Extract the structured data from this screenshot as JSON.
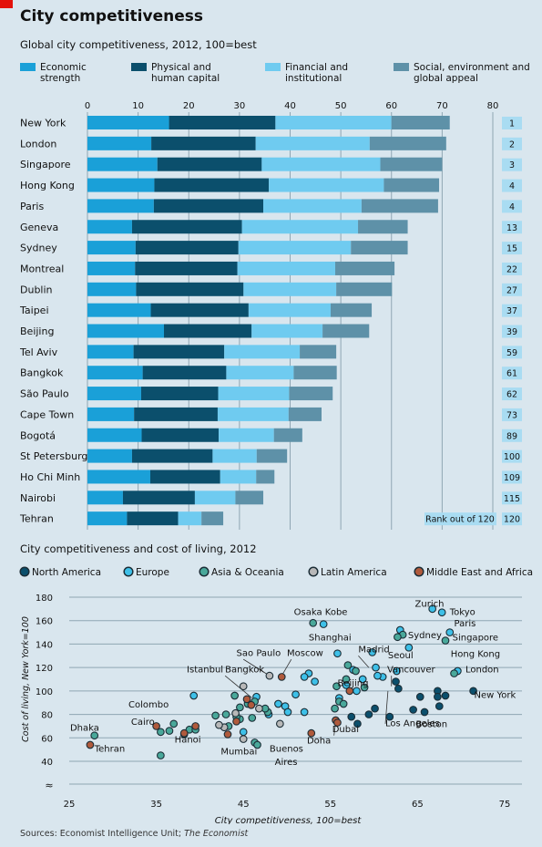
{
  "header": {
    "title": "City competitiveness",
    "source_prefix": "Sources: Economist Intelligence Unit; ",
    "source_italic": "The Economist"
  },
  "colors": {
    "economic": "#1aa0d8",
    "physical": "#0b4f6c",
    "financial": "#6fcbf0",
    "social": "#5e91a8",
    "north_america": "#0b4f6c",
    "europe": "#3ec0e8",
    "asia_oceania": "#49a89a",
    "latin_america": "#b8b8b8",
    "middle_east_africa": "#b05a3c"
  },
  "chart_data": [
    {
      "type": "bar",
      "stacked": true,
      "orientation": "horizontal",
      "title": "Global city competitiveness, 2012, 100=best",
      "categories": [
        "New York",
        "London",
        "Singapore",
        "Hong Kong",
        "Paris",
        "Geneva",
        "Sydney",
        "Montreal",
        "Dublin",
        "Taipei",
        "Beijing",
        "Tel Aviv",
        "Bangkok",
        "São Paulo",
        "Cape Town",
        "Bogotá",
        "St Petersburg",
        "Ho Chi Minh",
        "Nairobi",
        "Tehran"
      ],
      "series": [
        {
          "name": "Economic strength",
          "values": [
            16.1,
            12.6,
            13.8,
            13.2,
            13.1,
            8.8,
            9.5,
            9.4,
            9.6,
            12.5,
            15.1,
            9.1,
            10.9,
            10.6,
            9.2,
            10.7,
            8.8,
            12.4,
            7.0,
            7.8
          ]
        },
        {
          "name": "Physical and human capital",
          "values": [
            21.0,
            20.6,
            20.6,
            22.6,
            21.6,
            21.7,
            20.3,
            20.2,
            21.2,
            19.3,
            17.3,
            17.9,
            16.5,
            15.2,
            16.5,
            15.2,
            15.9,
            13.8,
            14.2,
            10.1
          ]
        },
        {
          "name": "Financial and institutional",
          "values": [
            22.9,
            22.5,
            23.4,
            22.7,
            19.4,
            22.9,
            22.2,
            19.3,
            18.3,
            16.2,
            14.0,
            14.9,
            13.3,
            14.0,
            14.0,
            10.9,
            8.7,
            7.1,
            8.0,
            4.6
          ]
        },
        {
          "name": "Social, environment and global appeal",
          "values": [
            11.5,
            15.1,
            12.2,
            10.9,
            15.1,
            9.8,
            11.2,
            11.7,
            11.0,
            8.1,
            9.2,
            7.2,
            8.5,
            8.6,
            6.5,
            5.6,
            6.0,
            3.6,
            5.5,
            4.3
          ]
        }
      ],
      "ranks": [
        "1",
        "2",
        "3",
        "4",
        "4",
        "13",
        "15",
        "22",
        "27",
        "37",
        "39",
        "59",
        "61",
        "62",
        "73",
        "89",
        "100",
        "109",
        "115",
        "120"
      ],
      "rank_note": "Rank out of 120",
      "xlim": [
        0,
        80
      ],
      "xticks": [
        0,
        10,
        20,
        30,
        40,
        50,
        60,
        70,
        80
      ],
      "legend": "top"
    },
    {
      "type": "scatter",
      "title": "City competitiveness and cost of living, 2012",
      "xlabel": "City competitiveness, 100=best",
      "ylabel": "Cost of living, New York=100",
      "xlim": [
        25,
        75
      ],
      "ylim": [
        40,
        180
      ],
      "xticks": [
        25,
        35,
        45,
        55,
        65,
        75
      ],
      "yticks": [
        40,
        60,
        80,
        100,
        120,
        140,
        160,
        180
      ],
      "legend": "top",
      "groups": [
        {
          "key": "north_america",
          "name": "North America",
          "points": [
            [
              71.4,
              100
            ],
            [
              62.5,
              108
            ],
            [
              62.8,
              102
            ],
            [
              60.1,
              85
            ],
            [
              61.8,
              78
            ],
            [
              67.3,
              100
            ],
            [
              67.3,
              95
            ],
            [
              65.3,
              95
            ],
            [
              68.2,
              96
            ],
            [
              64.5,
              84
            ],
            [
              65.8,
              82
            ],
            [
              67.5,
              87
            ],
            [
              59.4,
              80
            ],
            [
              58.1,
              72
            ],
            [
              57.4,
              78
            ]
          ]
        },
        {
          "key": "europe",
          "name": "Europe",
          "points": [
            [
              69.6,
              117
            ],
            [
              68.7,
              150
            ],
            [
              67.8,
              167
            ],
            [
              66.7,
              170
            ],
            [
              63.0,
              152
            ],
            [
              64.0,
              137
            ],
            [
              62.6,
              117
            ],
            [
              61.0,
              112
            ],
            [
              59.8,
              133
            ],
            [
              60.2,
              120
            ],
            [
              60.4,
              113
            ],
            [
              58.7,
              110
            ],
            [
              57.6,
              118
            ],
            [
              55.8,
              132
            ],
            [
              52.5,
              115
            ],
            [
              52.0,
              112
            ],
            [
              53.2,
              108
            ],
            [
              51.0,
              97
            ],
            [
              49.0,
              89
            ],
            [
              39.3,
              96
            ],
            [
              49.8,
              87
            ],
            [
              52.0,
              82
            ],
            [
              47.9,
              80
            ],
            [
              56.8,
              105
            ],
            [
              54.2,
              157
            ],
            [
              45.0,
              65
            ],
            [
              46.5,
              95
            ],
            [
              50.1,
              82
            ],
            [
              58.0,
              100
            ],
            [
              56.0,
              94
            ]
          ]
        },
        {
          "key": "asia_oceania",
          "name": "Asia & Oceania",
          "points": [
            [
              68.2,
              143
            ],
            [
              63.3,
              148
            ],
            [
              62.7,
              146
            ],
            [
              69.2,
              115
            ],
            [
              53.0,
              158
            ],
            [
              57.9,
              117
            ],
            [
              55.7,
              104
            ],
            [
              58.9,
              103
            ],
            [
              56.0,
              91
            ],
            [
              56.5,
              89
            ],
            [
              55.5,
              85
            ],
            [
              44.6,
              76
            ],
            [
              44.6,
              86
            ],
            [
              45.5,
              89
            ],
            [
              27.9,
              62
            ],
            [
              35.5,
              65
            ],
            [
              37.0,
              72
            ],
            [
              36.5,
              66
            ],
            [
              38.2,
              63
            ],
            [
              38.8,
              67
            ],
            [
              39.5,
              67
            ],
            [
              41.8,
              79
            ],
            [
              43.0,
              80
            ],
            [
              43.3,
              70
            ],
            [
              44.2,
              78
            ],
            [
              46.0,
              77
            ],
            [
              47.8,
              82
            ],
            [
              44.0,
              96
            ],
            [
              35.5,
              45
            ],
            [
              46.3,
              91
            ],
            [
              46.3,
              56
            ],
            [
              47.5,
              85
            ],
            [
              46.6,
              54
            ],
            [
              57.0,
              122
            ],
            [
              56.8,
              110
            ]
          ]
        },
        {
          "key": "latin_america",
          "name": "Latin America",
          "points": [
            [
              48.0,
              113
            ],
            [
              45.0,
              104
            ],
            [
              44.1,
              81
            ],
            [
              49.2,
              72
            ],
            [
              42.8,
              69
            ],
            [
              46.8,
              85
            ],
            [
              45.0,
              59
            ],
            [
              42.2,
              71
            ]
          ]
        },
        {
          "key": "middle_east_africa",
          "name": "Middle East and Africa",
          "points": [
            [
              27.4,
              54
            ],
            [
              35.0,
              70
            ],
            [
              38.2,
              64
            ],
            [
              44.2,
              74
            ],
            [
              45.9,
              88
            ],
            [
              45.4,
              93
            ],
            [
              49.4,
              112
            ],
            [
              52.8,
              64
            ],
            [
              55.6,
              75
            ],
            [
              55.8,
              73
            ],
            [
              57.2,
              100
            ],
            [
              43.2,
              63
            ],
            [
              39.5,
              70
            ]
          ]
        }
      ],
      "labels": [
        {
          "text": "Zurich",
          "x": 64.7,
          "y": 172
        },
        {
          "text": "Tokyo",
          "x": 68.7,
          "y": 165
        },
        {
          "text": "Osaka Kobe",
          "x": 50.8,
          "y": 165
        },
        {
          "text": "Paris",
          "x": 69.2,
          "y": 155
        },
        {
          "text": "Sydney",
          "x": 63.9,
          "y": 145
        },
        {
          "text": "Singapore",
          "x": 69.0,
          "y": 143
        },
        {
          "text": "Shanghai",
          "x": 52.5,
          "y": 143
        },
        {
          "text": "Madrid",
          "x": 58.2,
          "y": 133
        },
        {
          "text": "Seoul",
          "x": 61.6,
          "y": 128
        },
        {
          "text": "Hong Kong",
          "x": 68.8,
          "y": 129
        },
        {
          "text": "Sao Paulo",
          "x": 44.2,
          "y": 130
        },
        {
          "text": "Moscow",
          "x": 50.0,
          "y": 130
        },
        {
          "text": "London",
          "x": 70.5,
          "y": 116
        },
        {
          "text": "Vancouver",
          "x": 61.5,
          "y": 116
        },
        {
          "text": "Istanbul",
          "x": 38.5,
          "y": 116
        },
        {
          "text": "Bangkok",
          "x": 42.9,
          "y": 116
        },
        {
          "text": "Beijing",
          "x": 55.8,
          "y": 104
        },
        {
          "text": "New York",
          "x": 71.5,
          "y": 94
        },
        {
          "text": "Colombo",
          "x": 31.8,
          "y": 86
        },
        {
          "text": "Cairo",
          "x": 32.1,
          "y": 71
        },
        {
          "text": "Los Angeles",
          "x": 61.3,
          "y": 70
        },
        {
          "text": "Boston",
          "x": 64.8,
          "y": 69
        },
        {
          "text": "Dubai",
          "x": 55.2,
          "y": 65
        },
        {
          "text": "Dhaka",
          "x": 25.1,
          "y": 66
        },
        {
          "text": "Hanoi",
          "x": 37.1,
          "y": 56
        },
        {
          "text": "Doha",
          "x": 52.3,
          "y": 55
        },
        {
          "text": "Tehran",
          "x": 27.9,
          "y": 48
        },
        {
          "text": "Mumbai",
          "x": 42.4,
          "y": 46
        },
        {
          "text": "Buenos",
          "x": 48.0,
          "y": 48
        },
        {
          "text": "Aires",
          "x": 48.6,
          "y": 37
        }
      ]
    }
  ]
}
